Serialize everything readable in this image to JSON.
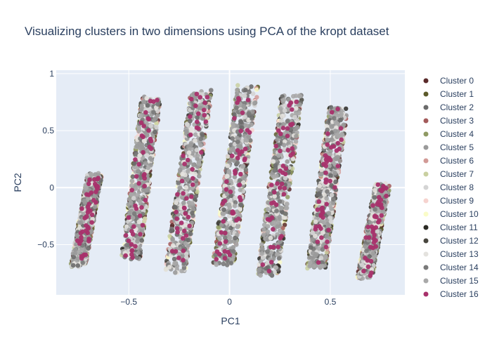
{
  "chart_data": {
    "type": "scatter",
    "title": "Visualizing clusters in two dimensions using PCA of the kropt dataset",
    "xlabel": "PC1",
    "ylabel": "PC2",
    "xlim": [
      -0.86,
      0.87
    ],
    "ylim": [
      -0.94,
      1.03
    ],
    "x_ticks": [
      -0.5,
      0,
      0.5
    ],
    "y_ticks": [
      -0.5,
      0,
      0.5,
      1
    ],
    "x_tick_labels": [
      "−0.5",
      "0",
      "0.5"
    ],
    "y_tick_labels": [
      "−0.5",
      "0",
      "0.5",
      "1"
    ],
    "grid": true,
    "legend_position": "right",
    "bands": [
      {
        "x_bottom": -0.75,
        "y_bottom": -0.68,
        "x_top": -0.67,
        "y_top": 0.11,
        "half_width": 0.035
      },
      {
        "x_bottom": -0.49,
        "y_bottom": -0.62,
        "x_top": -0.39,
        "y_top": 0.78,
        "half_width": 0.045
      },
      {
        "x_bottom": -0.27,
        "y_bottom": -0.73,
        "x_top": -0.14,
        "y_top": 0.84,
        "half_width": 0.05
      },
      {
        "x_bottom": -0.03,
        "y_bottom": -0.67,
        "x_top": 0.09,
        "y_top": 0.89,
        "half_width": 0.05
      },
      {
        "x_bottom": 0.19,
        "y_bottom": -0.76,
        "x_top": 0.31,
        "y_top": 0.81,
        "half_width": 0.05
      },
      {
        "x_bottom": 0.43,
        "y_bottom": -0.71,
        "x_top": 0.54,
        "y_top": 0.7,
        "half_width": 0.045
      },
      {
        "x_bottom": 0.67,
        "y_bottom": -0.79,
        "x_top": 0.76,
        "y_top": 0.03,
        "half_width": 0.035
      }
    ],
    "series": [
      {
        "name": "Cluster 0",
        "color": "#5a2a2a"
      },
      {
        "name": "Cluster 1",
        "color": "#5c5a2a"
      },
      {
        "name": "Cluster 2",
        "color": "#6b6b6b"
      },
      {
        "name": "Cluster 3",
        "color": "#a35a5a"
      },
      {
        "name": "Cluster 4",
        "color": "#8f9a63"
      },
      {
        "name": "Cluster 5",
        "color": "#9a9a9a"
      },
      {
        "name": "Cluster 6",
        "color": "#d29a96"
      },
      {
        "name": "Cluster 7",
        "color": "#c9d0a0"
      },
      {
        "name": "Cluster 8",
        "color": "#d4d4d4"
      },
      {
        "name": "Cluster 9",
        "color": "#f6d3cf"
      },
      {
        "name": "Cluster 10",
        "color": "#fafcc8"
      },
      {
        "name": "Cluster 11",
        "color": "#2b2a24"
      },
      {
        "name": "Cluster 12",
        "color": "#48463e"
      },
      {
        "name": "Cluster 13",
        "color": "#e4e2de"
      },
      {
        "name": "Cluster 14",
        "color": "#7a7a7a"
      },
      {
        "name": "Cluster 15",
        "color": "#a9a9a9"
      },
      {
        "name": "Cluster 16",
        "color": "#a8316b"
      }
    ]
  }
}
